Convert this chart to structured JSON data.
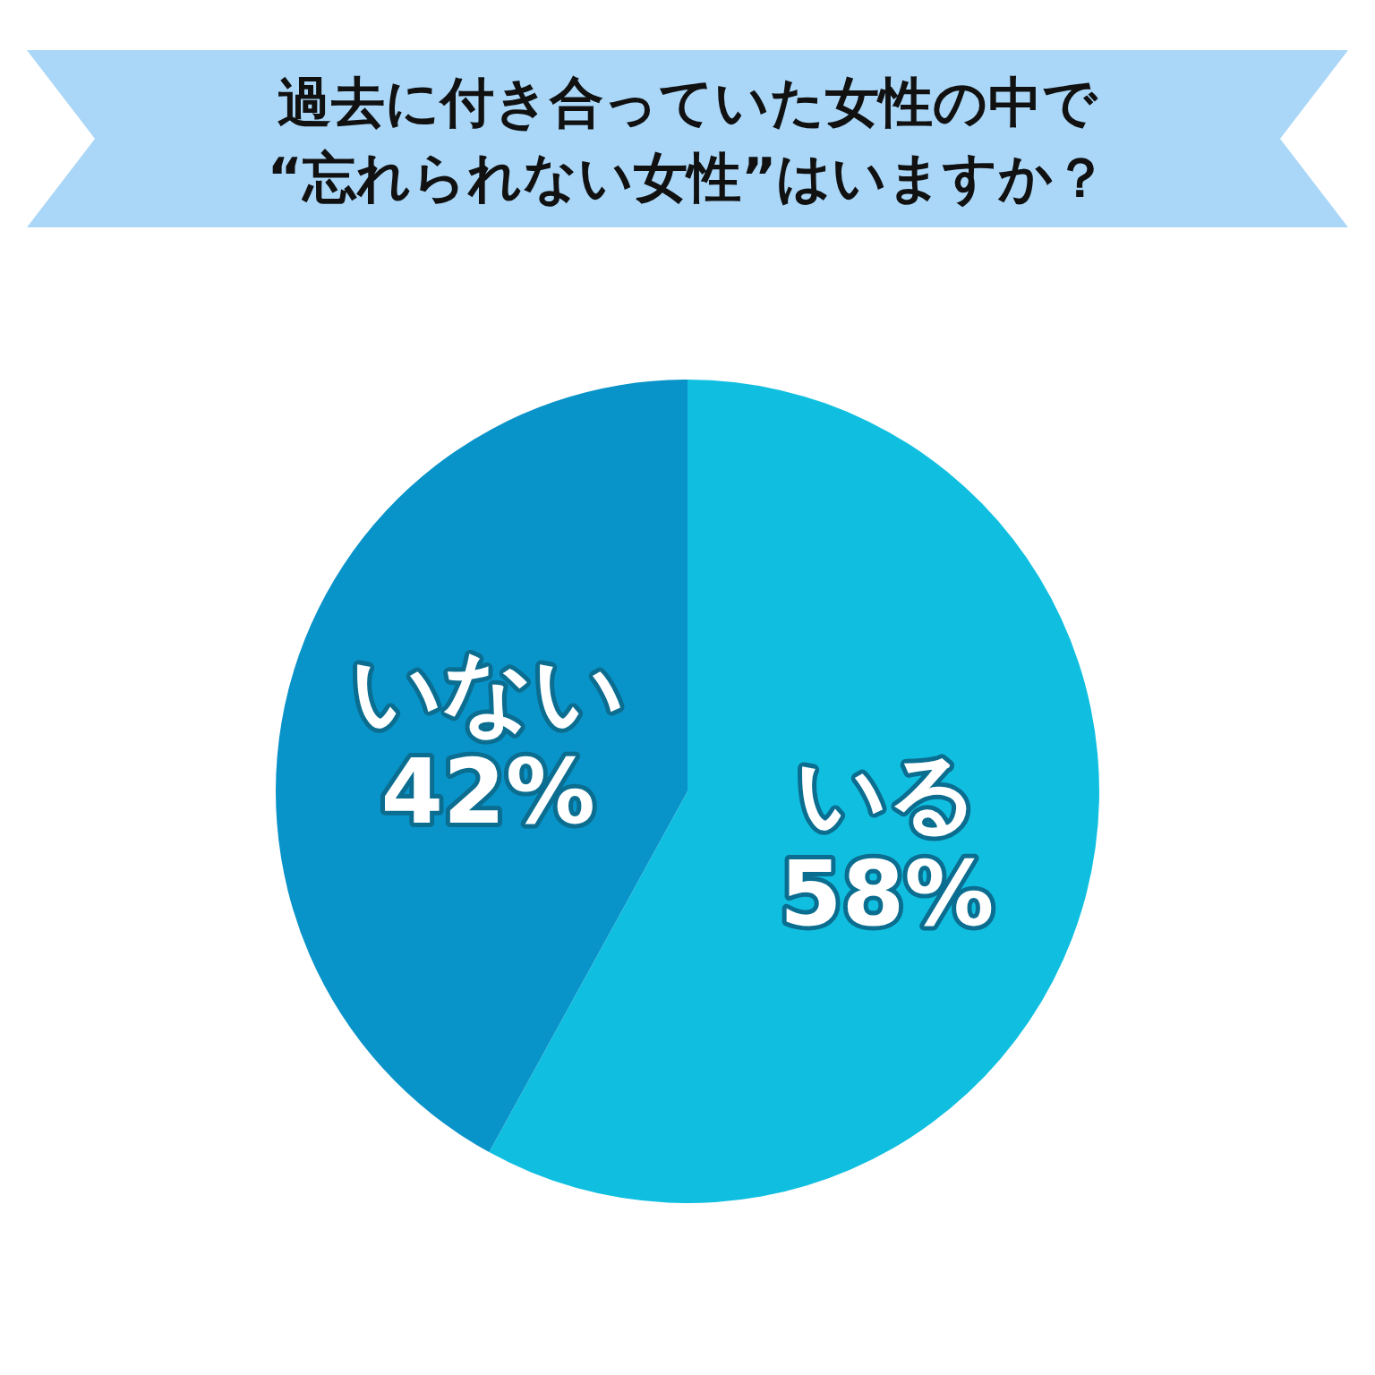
{
  "chart_data": {
    "type": "pie",
    "title": "過去に付き合っていた女性の中で\n“忘れられない女性”はいますか？",
    "categories": [
      "いる",
      "いない"
    ],
    "values": [
      58,
      42
    ],
    "colors": [
      "#10bfe0",
      "#0893c9"
    ],
    "value_labels": [
      "58%",
      "42%"
    ]
  }
}
